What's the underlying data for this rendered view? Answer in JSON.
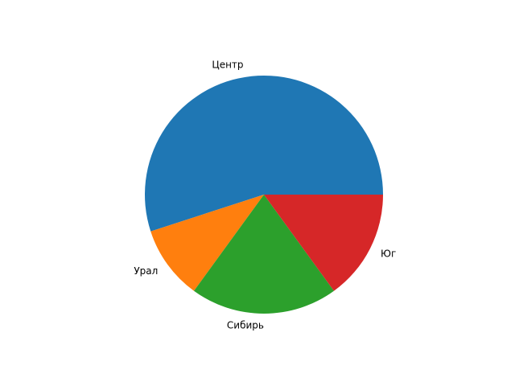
{
  "chart_data": {
    "type": "pie",
    "categories": [
      "Центр",
      "Урал",
      "Сибирь",
      "Юг"
    ],
    "values": [
      55,
      10,
      20,
      15
    ],
    "colors": [
      "#1f77b4",
      "#ff7f0e",
      "#2ca02c",
      "#d62728"
    ],
    "start_angle_deg": 0,
    "direction": "counterclockwise"
  }
}
